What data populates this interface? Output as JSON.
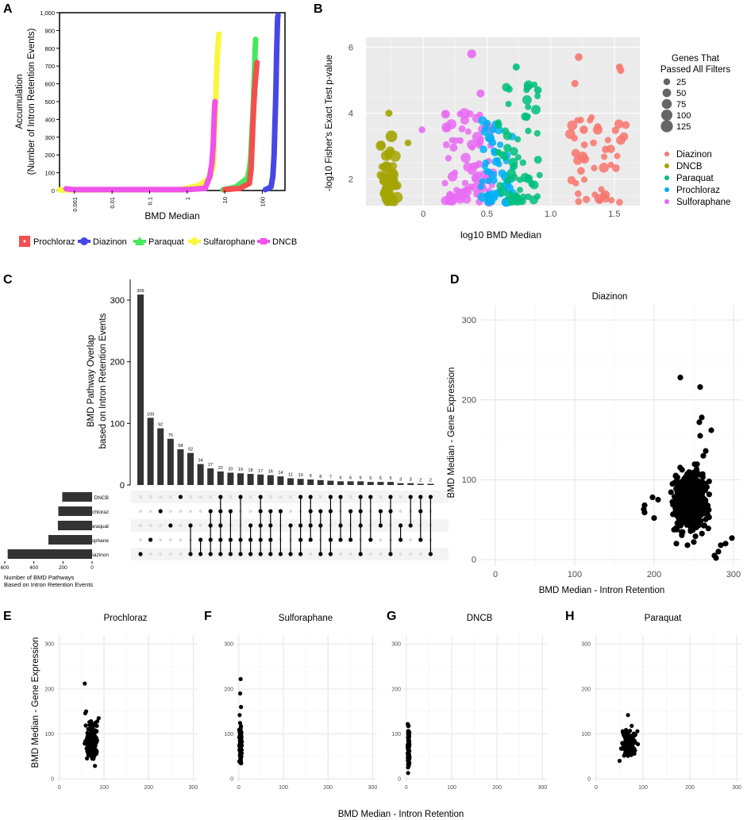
{
  "panel_labels": [
    "A",
    "B",
    "C",
    "D",
    "E",
    "F",
    "G",
    "H"
  ],
  "colors": {
    "Prochloraz": "#f44e4e",
    "Diazinon": "#4747e8",
    "Paraquat": "#44e85a",
    "Sulfarophane": "#f7f73b",
    "DNCB": "#f052ea",
    "b_Diazinon": "#f8766d",
    "b_DNCB": "#a3a500",
    "b_Paraquat": "#00bf7d",
    "b_Prochloraz": "#00b0f6",
    "b_Sulforaphane": "#e76bf3",
    "bar": "#333333",
    "grid": "#e4e4e4",
    "panel_bg_c": "#f4f4f4"
  },
  "chart_data": [
    {
      "id": "A",
      "type": "line",
      "xscale": "log",
      "xlabel": "BMD Median",
      "ylabel_line1": "Accumulation",
      "ylabel_line2": "(Number of Intron Retention Events)",
      "xticks": [
        "0.001",
        "0.01",
        "0.1",
        "1",
        "10",
        "100"
      ],
      "yticks": [
        "0",
        "100",
        "200",
        "300",
        "400",
        "500",
        "600",
        "700",
        "800",
        "900",
        "1,000"
      ],
      "xlim": [
        0.0004,
        400
      ],
      "ylim": [
        0,
        1000
      ],
      "legend": [
        "Prochloraz",
        "Diazinon",
        "Paraquat",
        "Sulfarophane",
        "DNCB"
      ],
      "series": [
        {
          "name": "Sulfarophane",
          "points": [
            [
              0.0004,
              3
            ],
            [
              0.7,
              6
            ],
            [
              2,
              28
            ],
            [
              4,
              70
            ],
            [
              5,
              140
            ],
            [
              5.2,
              300
            ],
            [
              5.6,
              420
            ],
            [
              5.9,
              600
            ],
            [
              6.2,
              720
            ],
            [
              6.6,
              810
            ],
            [
              7,
              880
            ]
          ]
        },
        {
          "name": "DNCB",
          "points": [
            [
              0.0006,
              10
            ],
            [
              0.0009,
              5
            ],
            [
              0.01,
              5
            ],
            [
              0.1,
              5
            ],
            [
              1,
              5
            ],
            [
              3,
              12
            ],
            [
              4,
              80
            ],
            [
              4.5,
              150
            ],
            [
              4.9,
              250
            ],
            [
              5.1,
              350
            ],
            [
              5.3,
              450
            ],
            [
              5.5,
              500
            ]
          ]
        },
        {
          "name": "Paraquat",
          "points": [
            [
              9,
              4
            ],
            [
              20,
              20
            ],
            [
              40,
              70
            ],
            [
              45,
              120
            ],
            [
              49,
              180
            ],
            [
              52,
              300
            ],
            [
              56,
              420
            ],
            [
              59,
              560
            ],
            [
              62,
              680
            ],
            [
              64,
              780
            ],
            [
              66,
              850
            ]
          ]
        },
        {
          "name": "Prochloraz",
          "points": [
            [
              10,
              5
            ],
            [
              25,
              12
            ],
            [
              45,
              40
            ],
            [
              50,
              120
            ],
            [
              53,
              250
            ],
            [
              56,
              380
            ],
            [
              59,
              480
            ],
            [
              63,
              580
            ],
            [
              67,
              650
            ],
            [
              72,
              720
            ]
          ]
        },
        {
          "name": "Diazinon",
          "points": [
            [
              120,
              5
            ],
            [
              170,
              20
            ],
            [
              190,
              80
            ],
            [
              205,
              200
            ],
            [
              215,
              350
            ],
            [
              225,
              500
            ],
            [
              233,
              640
            ],
            [
              240,
              780
            ],
            [
              248,
              890
            ],
            [
              255,
              970
            ],
            [
              262,
              985
            ]
          ]
        }
      ]
    },
    {
      "id": "B",
      "type": "scatter",
      "xlabel": "log10 BMD Median",
      "ylabel": "-log10 Fisher's Exact Test p-value",
      "xticks": [
        "0",
        "0.5",
        "1.0",
        "1.5"
      ],
      "yticks": [
        "2",
        "4",
        "6"
      ],
      "xlim": [
        -0.45,
        1.7
      ],
      "ylim": [
        1.2,
        6.3
      ],
      "size_legend_title_line1": "Genes That",
      "size_legend_title_line2": "Passed All Filters",
      "size_legend": [
        "25",
        "50",
        "75",
        "100",
        "125"
      ],
      "color_legend": [
        "Diazinon",
        "DNCB",
        "Paraquat",
        "Prochloraz",
        "Sulforaphane"
      ],
      "groups": [
        {
          "name": "DNCB",
          "color_key": "b_DNCB",
          "x_range": [
            -0.34,
            -0.2
          ],
          "y_range": [
            1.3,
            3.3
          ],
          "n": 45,
          "size_range": [
            25,
            110
          ]
        },
        {
          "name": "Sulforaphane",
          "color_key": "b_Sulforaphane",
          "x_range": [
            0.17,
            0.55
          ],
          "y_range": [
            1.3,
            4.0
          ],
          "n": 80,
          "size_range": [
            20,
            90
          ]
        },
        {
          "name": "Prochloraz",
          "color_key": "b_Prochloraz",
          "x_range": [
            0.45,
            0.72
          ],
          "y_range": [
            1.3,
            3.8
          ],
          "n": 55,
          "size_range": [
            20,
            70
          ]
        },
        {
          "name": "Paraquat",
          "color_key": "b_Paraquat",
          "x_range": [
            0.58,
            0.92
          ],
          "y_range": [
            1.3,
            5.0
          ],
          "n": 55,
          "size_range": [
            20,
            70
          ]
        },
        {
          "name": "Diazinon",
          "color_key": "b_Diazinon",
          "x_range": [
            1.15,
            1.6
          ],
          "y_range": [
            1.3,
            4.0
          ],
          "n": 45,
          "size_range": [
            20,
            80
          ]
        }
      ],
      "points": [
        {
          "group": "Sulforaphane",
          "color_key": "b_Sulforaphane",
          "x": 0.38,
          "y": 5.8,
          "size": 55
        },
        {
          "group": "Sulforaphane",
          "color_key": "b_Sulforaphane",
          "x": -0.01,
          "y": 3.5,
          "size": 25
        },
        {
          "group": "Sulforaphane",
          "color_key": "b_Sulforaphane",
          "x": 0.45,
          "y": 4.6,
          "size": 40
        },
        {
          "group": "DNCB",
          "color_key": "b_DNCB",
          "x": -0.27,
          "y": 4.0,
          "size": 30
        },
        {
          "group": "DNCB",
          "color_key": "b_DNCB",
          "x": -0.25,
          "y": 3.3,
          "size": 110
        },
        {
          "group": "DNCB",
          "color_key": "b_DNCB",
          "x": -0.12,
          "y": 3.1,
          "size": 25
        },
        {
          "group": "Paraquat",
          "color_key": "b_Paraquat",
          "x": 0.73,
          "y": 5.4,
          "size": 30
        },
        {
          "group": "Paraquat",
          "color_key": "b_Paraquat",
          "x": 0.82,
          "y": 4.8,
          "size": 40
        },
        {
          "group": "Paraquat",
          "color_key": "b_Paraquat",
          "x": 0.9,
          "y": 4.7,
          "size": 35
        },
        {
          "group": "Paraquat",
          "color_key": "b_Paraquat",
          "x": 0.8,
          "y": 3.9,
          "size": 45
        },
        {
          "group": "Diazinon",
          "color_key": "b_Diazinon",
          "x": 1.22,
          "y": 5.7,
          "size": 35
        },
        {
          "group": "Diazinon",
          "color_key": "b_Diazinon",
          "x": 1.19,
          "y": 4.9,
          "size": 30
        },
        {
          "group": "Diazinon",
          "color_key": "b_Diazinon",
          "x": 1.54,
          "y": 5.4,
          "size": 30
        },
        {
          "group": "Diazinon",
          "color_key": "b_Diazinon",
          "x": 1.55,
          "y": 5.3,
          "size": 30
        },
        {
          "group": "Diazinon",
          "color_key": "b_Diazinon",
          "x": 1.26,
          "y": 3.5,
          "size": 45
        }
      ]
    },
    {
      "id": "C",
      "type": "bar",
      "subtype": "upset",
      "ylabel_line1": "BMD Pathway Overlap",
      "ylabel_line2": "based on Intron Retention Events",
      "yticks": [
        "0",
        "100",
        "200",
        "300"
      ],
      "ylim": [
        0,
        340
      ],
      "values": [
        309,
        109,
        92,
        75,
        58,
        52,
        34,
        27,
        22,
        20,
        19,
        18,
        17,
        16,
        14,
        11,
        10,
        9,
        8,
        7,
        6,
        6,
        6,
        5,
        5,
        5,
        3,
        3,
        2,
        2
      ],
      "value_labels": [
        "309",
        "109",
        "92",
        "75",
        "58",
        "52",
        "34",
        "27",
        "22",
        "20",
        "19",
        "18",
        "17",
        "16",
        "14",
        "11",
        "10",
        "9",
        "8",
        "7",
        "6",
        "6",
        "6",
        "5",
        "5",
        "5",
        "3",
        "3",
        "2",
        "2"
      ],
      "sets": [
        "DNCB",
        "Prochloraz",
        "Paraquat",
        "Sulfarophane",
        "Diazinon"
      ],
      "set_sizes": [
        205,
        232,
        235,
        300,
        580
      ],
      "set_size_ticks": [
        "600",
        "400",
        "200",
        "0"
      ],
      "set_size_xlim": [
        600,
        0
      ],
      "set_size_xlabel_line1": "Number of BMD Pathways",
      "set_size_xlabel_line2": "Based on Intron Retention Events",
      "combinations": [
        [
          4
        ],
        [
          3
        ],
        [
          1
        ],
        [
          2
        ],
        [
          0
        ],
        [
          2,
          4
        ],
        [
          3,
          4
        ],
        [
          1,
          2,
          3,
          4
        ],
        [
          0,
          1,
          2,
          3,
          4
        ],
        [
          1,
          3,
          4
        ],
        [
          0,
          3,
          4
        ],
        [
          2,
          3,
          4
        ],
        [
          0,
          1,
          2,
          3,
          4
        ],
        [
          1,
          2,
          3,
          4
        ],
        [
          1,
          4
        ],
        [
          2,
          4
        ],
        [
          0,
          2,
          3,
          4
        ],
        [
          0,
          1,
          2,
          3
        ],
        [
          1,
          2,
          4
        ],
        [
          0,
          1,
          3,
          4
        ],
        [
          0,
          2,
          3
        ],
        [
          1,
          3
        ],
        [
          0,
          1,
          2,
          4
        ],
        [
          0,
          3
        ],
        [
          1,
          2
        ],
        [
          0,
          1,
          4
        ],
        [
          2,
          3
        ],
        [
          0,
          2
        ],
        [
          0,
          1,
          3
        ],
        [
          0,
          4
        ]
      ]
    },
    {
      "id": "D",
      "type": "scatter",
      "title": "Diazinon",
      "xlabel": "BMD Median - Intron Retention",
      "ylabel": "BMD Median - Gene Expression",
      "xticks": [
        "0",
        "100",
        "200",
        "300"
      ],
      "yticks": [
        "0",
        "100",
        "200",
        "300"
      ],
      "xlim": [
        -20,
        310
      ],
      "ylim": [
        -8,
        318
      ],
      "cluster": {
        "x_range": [
          215,
          275
        ],
        "y_range": [
          25,
          125
        ],
        "n": 520
      },
      "points": [
        {
          "x": 233,
          "y": 228
        },
        {
          "x": 258,
          "y": 216
        },
        {
          "x": 260,
          "y": 178
        },
        {
          "x": 257,
          "y": 172
        },
        {
          "x": 272,
          "y": 162
        },
        {
          "x": 258,
          "y": 155
        },
        {
          "x": 265,
          "y": 136
        },
        {
          "x": 262,
          "y": 130
        },
        {
          "x": 188,
          "y": 68
        },
        {
          "x": 188,
          "y": 59
        },
        {
          "x": 187,
          "y": 63
        },
        {
          "x": 200,
          "y": 52
        },
        {
          "x": 198,
          "y": 78
        },
        {
          "x": 205,
          "y": 75
        },
        {
          "x": 290,
          "y": 20
        },
        {
          "x": 298,
          "y": 27
        },
        {
          "x": 284,
          "y": 18
        },
        {
          "x": 276,
          "y": 5
        },
        {
          "x": 278,
          "y": 2
        },
        {
          "x": 281,
          "y": 10
        },
        {
          "x": 228,
          "y": 20
        },
        {
          "x": 242,
          "y": 18
        },
        {
          "x": 250,
          "y": 22
        }
      ]
    },
    {
      "id": "E",
      "type": "scatter",
      "title": "Prochloraz",
      "xticks": [
        "0",
        "100",
        "200",
        "300"
      ],
      "yticks": [
        "0",
        "100",
        "200",
        "300"
      ],
      "xlim": [
        -5,
        310
      ],
      "ylim": [
        -5,
        320
      ],
      "cluster": {
        "x_range": [
          55,
          90
        ],
        "y_range": [
          20,
          140
        ],
        "n": 180
      },
      "points": [
        {
          "x": 57,
          "y": 212
        },
        {
          "x": 60,
          "y": 150
        },
        {
          "x": 58,
          "y": 146
        },
        {
          "x": 88,
          "y": 135
        },
        {
          "x": 85,
          "y": 128
        }
      ]
    },
    {
      "id": "F",
      "type": "scatter",
      "title": "Sulforaphane",
      "xticks": [
        "0",
        "100",
        "200",
        "300"
      ],
      "yticks": [
        "0",
        "100",
        "200",
        "300"
      ],
      "xlim": [
        -5,
        310
      ],
      "ylim": [
        -5,
        320
      ],
      "cluster": {
        "x_range": [
          0,
          8
        ],
        "y_range": [
          25,
          130
        ],
        "n": 140
      },
      "points": [
        {
          "x": 4,
          "y": 222
        },
        {
          "x": 3,
          "y": 190
        },
        {
          "x": 5,
          "y": 160
        },
        {
          "x": 2,
          "y": 142
        }
      ]
    },
    {
      "id": "G",
      "type": "scatter",
      "title": "DNCB",
      "xticks": [
        "0",
        "100",
        "200",
        "300"
      ],
      "yticks": [
        "0",
        "100",
        "200",
        "300"
      ],
      "xlim": [
        -5,
        310
      ],
      "ylim": [
        -5,
        320
      ],
      "cluster": {
        "x_range": [
          2,
          8
        ],
        "y_range": [
          15,
          125
        ],
        "n": 130
      },
      "points": [
        {
          "x": 4,
          "y": 13
        },
        {
          "x": 5,
          "y": 118
        },
        {
          "x": 3,
          "y": 122
        }
      ]
    },
    {
      "id": "H",
      "type": "scatter",
      "title": "Paraquat",
      "xticks": [
        "0",
        "100",
        "200",
        "300"
      ],
      "yticks": [
        "0",
        "100",
        "200",
        "300"
      ],
      "xlim": [
        -5,
        310
      ],
      "ylim": [
        -5,
        320
      ],
      "cluster": {
        "x_range": [
          50,
          90
        ],
        "y_range": [
          38,
          115
        ],
        "n": 150
      },
      "points": [
        {
          "x": 68,
          "y": 142
        },
        {
          "x": 76,
          "y": 118
        },
        {
          "x": 88,
          "y": 106
        },
        {
          "x": 50,
          "y": 40
        }
      ]
    }
  ],
  "shared_labels": {
    "efgh_ylabel": "BMD Median - Gene Expression",
    "efgh_xlabel": "BMD Median - Intron Retention"
  }
}
